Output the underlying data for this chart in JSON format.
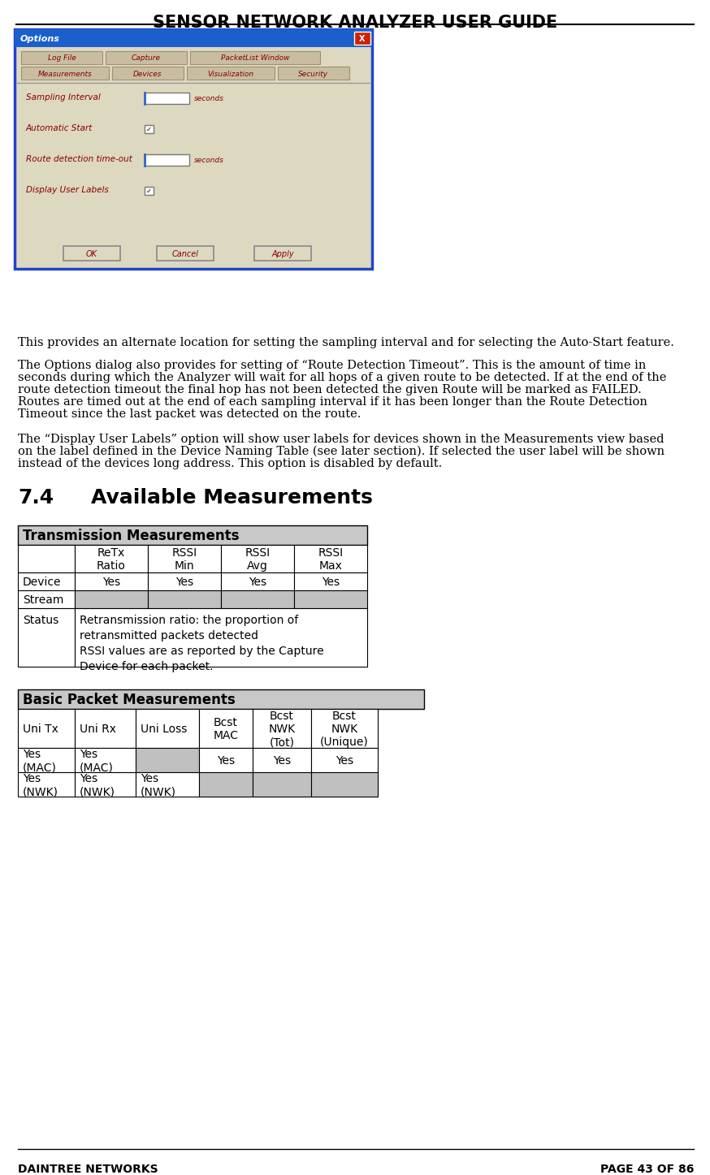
{
  "title": "SENSOR NETWORK ANALYZER USER GUIDE",
  "footer_left": "DAINTREE NETWORKS",
  "footer_right": "PAGE 43 OF 86",
  "section_heading_num": "7.4",
  "section_heading_text": "Available Measurements",
  "para1": "This provides an alternate location for setting the sampling interval and for selecting the Auto-Start feature.",
  "para2_lines": [
    "The Options dialog also provides for setting of “Route Detection Timeout”. This is the amount of time in",
    "seconds during which the Analyzer will wait for all hops of a given route to be detected. If at the end of the",
    "route detection timeout the final hop has not been detected the given Route will be marked as FAILED.",
    "Routes are timed out at the end of each sampling interval if it has been longer than the Route Detection",
    "Timeout since the last packet was detected on the route."
  ],
  "para3_lines": [
    "The “Display User Labels” option will show user labels for devices shown in the Measurements view based",
    "on the label defined in the Device Naming Table (see later section). If selected the user label will be shown",
    "instead of the devices long address. This option is disabled by default."
  ],
  "table1_title": "Transmission Measurements",
  "table1_headers": [
    "",
    "ReTx\nRatio",
    "RSSI\nMin",
    "RSSI\nAvg",
    "RSSI\nMax"
  ],
  "table1_row1": [
    "Device",
    "Yes",
    "Yes",
    "Yes",
    "Yes"
  ],
  "table1_row2": [
    "Stream",
    "",
    "",
    "",
    ""
  ],
  "table1_row3_label": "Status",
  "table1_row3_text": "Retransmission ratio: the proportion of\nretransmitted packets detected\nRSSI values are as reported by the Capture\nDevice for each packet.",
  "table2_title": "Basic Packet Measurements",
  "table2_headers": [
    "Uni Tx",
    "Uni Rx",
    "Uni Loss",
    "Bcst\nMAC",
    "Bcst\nNWK\n(Tot)",
    "Bcst\nNWK\n(Unique)"
  ],
  "table2_row1": [
    "Yes\n(MAC)",
    "Yes\n(MAC)",
    "",
    "Yes",
    "Yes",
    "Yes"
  ],
  "table2_row2": [
    "Yes\n(NWK)",
    "Yes\n(NWK)",
    "Yes\n(NWK)",
    "",
    "",
    ""
  ],
  "bg_color": "#ffffff",
  "dialog_bg": "#DDD8C0",
  "dialog_titlebar": "#1A5FCC",
  "title_font_size": 14,
  "body_font_size": 10.5,
  "table_font_size": 10
}
